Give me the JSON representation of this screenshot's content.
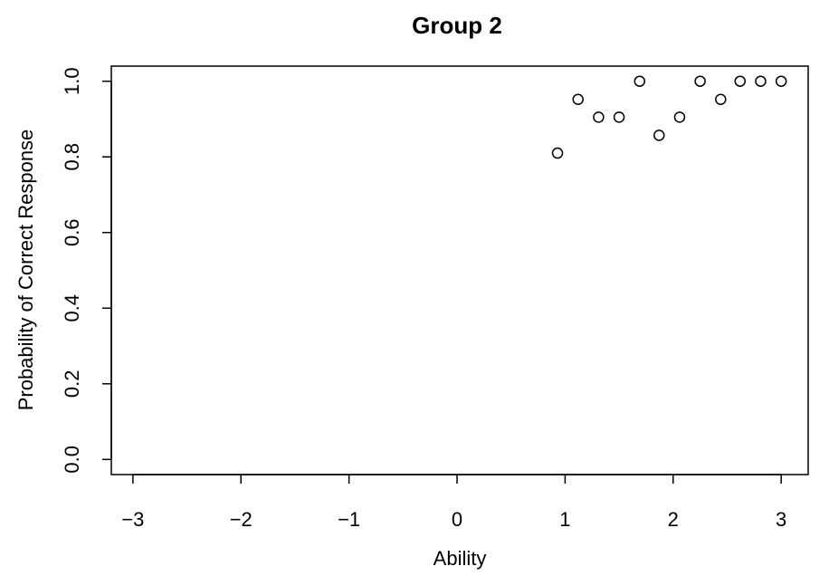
{
  "chart_data": {
    "type": "scatter",
    "title": "Group 2",
    "xlabel": "Ability",
    "ylabel": "Probability of Correct Response",
    "xlim": [
      -3.2,
      3.25
    ],
    "ylim": [
      -0.04,
      1.04
    ],
    "x_ticks": [
      -3,
      -2,
      -1,
      0,
      1,
      2,
      3
    ],
    "x_tick_labels": [
      "−3",
      "−2",
      "−1",
      "0",
      "1",
      "2",
      "3"
    ],
    "y_ticks": [
      0,
      0.2,
      0.4,
      0.6,
      0.8,
      1
    ],
    "y_tick_labels": [
      "0.0",
      "0.2",
      "0.4",
      "0.6",
      "0.8",
      "1.0"
    ],
    "grid": false,
    "marker": "open-circle",
    "color": "#000000",
    "x": [
      0.93,
      1.12,
      1.31,
      1.5,
      1.69,
      1.87,
      2.06,
      2.25,
      2.44,
      2.62,
      2.81,
      3.0
    ],
    "y": [
      0.81,
      0.952,
      0.905,
      0.905,
      1.0,
      0.857,
      0.905,
      1.0,
      0.952,
      1.0,
      1.0,
      1.0
    ]
  }
}
